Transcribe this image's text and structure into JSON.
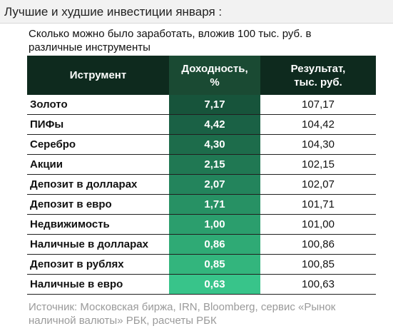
{
  "header": {
    "title": "Лучшие и худшие инвестиции января :"
  },
  "chart_data": {
    "type": "table",
    "subtitle": "Сколько можно было заработать, вложив 100 тыс. руб. в различные инструменты",
    "columns": [
      "Иструмент",
      "Доходность, %",
      "Результат, тыс. руб."
    ],
    "rows": [
      {
        "name": "Золото",
        "yield": "7,17",
        "result": "107,17"
      },
      {
        "name": "ПИФы",
        "yield": "4,42",
        "result": "104,42"
      },
      {
        "name": "Серебро",
        "yield": "4,30",
        "result": "104,30"
      },
      {
        "name": "Акции",
        "yield": "2,15",
        "result": "102,15"
      },
      {
        "name": "Депозит в долларах",
        "yield": "2,07",
        "result": "102,07"
      },
      {
        "name": "Депозит в евро",
        "yield": "1,71",
        "result": "101,71"
      },
      {
        "name": "Недвижимость",
        "yield": "1,00",
        "result": "101,00"
      },
      {
        "name": "Наличные в долларах",
        "yield": "0,86",
        "result": "100,86"
      },
      {
        "name": "Депозит в рублях",
        "yield": "0,85",
        "result": "100,85"
      },
      {
        "name": "Наличные в евро",
        "yield": "0,63",
        "result": "100,63"
      }
    ],
    "source": "Источник: Московская биржа, IRN, Bloomberg, сервис «Рынок наличной валюты» РБК, расчеты РБК"
  },
  "colors": {
    "header_bg": "#0e2a1e",
    "yield_shades": [
      "#17543b",
      "#1a6145",
      "#1d6c4b",
      "#207853",
      "#23845c",
      "#279164",
      "#2b9e6d",
      "#2faa75",
      "#33b57d",
      "#38c48a"
    ]
  }
}
